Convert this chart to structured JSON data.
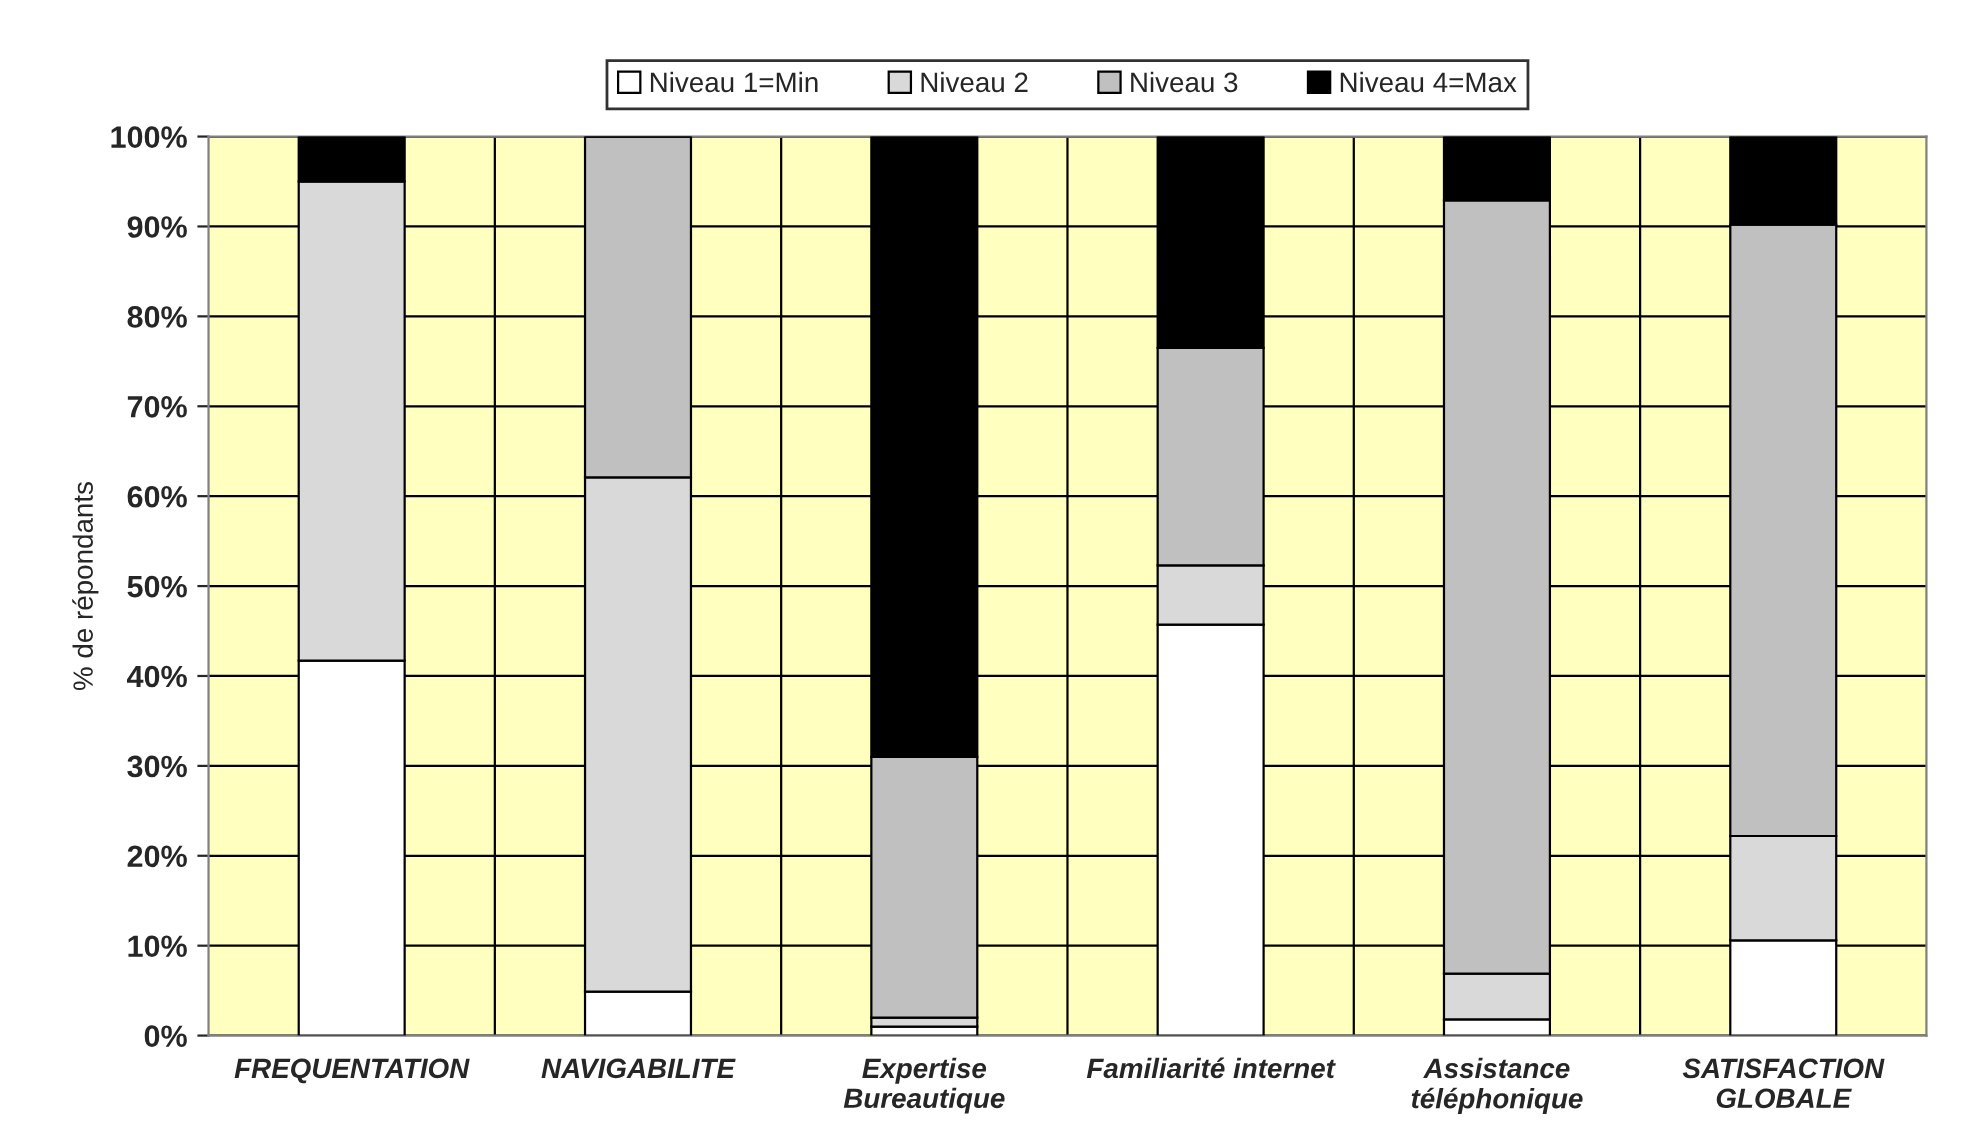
{
  "chart_data": {
    "type": "bar",
    "stacked": true,
    "ylabel": "% de répondants",
    "categories": [
      "FREQUENTATION",
      "NAVIGABILITE",
      "Expertise\nBureautique",
      "Familiarité internet",
      "Assistance\ntéléphonique",
      "SATISFACTION\nGLOBALE"
    ],
    "series": [
      {
        "name": "Niveau 1=Min",
        "color": "#ffffff",
        "values": [
          41.7,
          4.9,
          1,
          45.7,
          1.8,
          10.6
        ]
      },
      {
        "name": "Niveau 2",
        "color": "#d9d9d9",
        "values": [
          53.3,
          57.2,
          1,
          6.6,
          5.1,
          11.6
        ]
      },
      {
        "name": "Niveau 3",
        "color": "#c0c0c0",
        "values": [
          0,
          37.9,
          29,
          24.2,
          86,
          68
        ]
      },
      {
        "name": "Niveau 4=Max",
        "color": "#000000",
        "values": [
          5,
          0,
          69,
          23.5,
          7.1,
          9.8
        ]
      }
    ],
    "ylim": [
      0,
      100
    ],
    "yticks": [
      {
        "value": 0,
        "label": "0%"
      },
      {
        "value": 10,
        "label": "10%"
      },
      {
        "value": 20,
        "label": "20%"
      },
      {
        "value": 30,
        "label": "30%"
      },
      {
        "value": 40,
        "label": "40%"
      },
      {
        "value": 50,
        "label": "50%"
      },
      {
        "value": 60,
        "label": "60%"
      },
      {
        "value": 70,
        "label": "70%"
      },
      {
        "value": 80,
        "label": "80%"
      },
      {
        "value": 90,
        "label": "90%"
      },
      {
        "value": 100,
        "label": "100%"
      }
    ],
    "grid": true,
    "legend": "top"
  }
}
